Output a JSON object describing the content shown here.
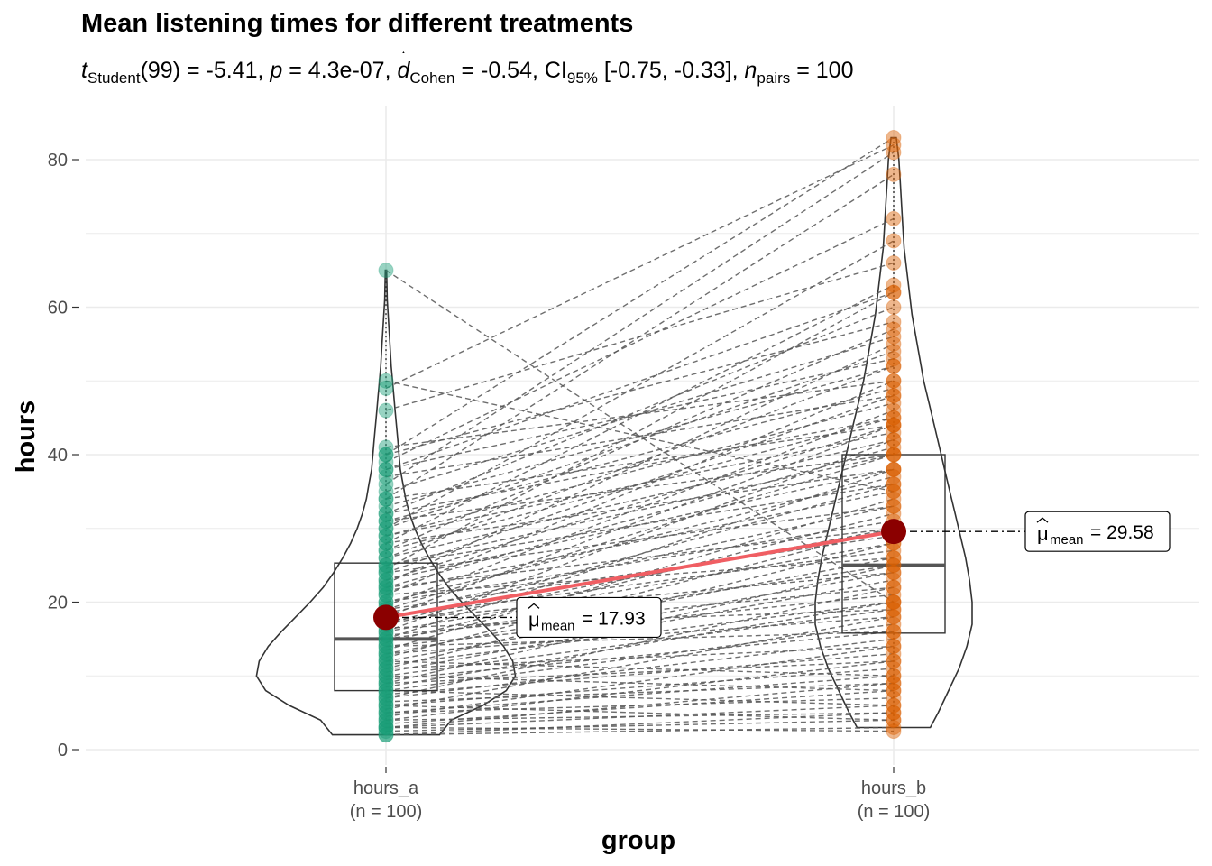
{
  "title": "Mean listening times for different treatments",
  "subtitle": {
    "t_sym": "t",
    "t_sub": "Student",
    "t_val": "(99) = -5.41, ",
    "p_sym": "p",
    "p_val": " = 4.3e-07, ",
    "d_sym": "d",
    "d_sub": "Cohen",
    "d_val": " = -0.54, CI",
    "ci_sub": "95%",
    "ci_val": " [-0.75, -0.33], ",
    "n_sym": "n",
    "n_sub": "pairs",
    "n_val": " = 100"
  },
  "colors": {
    "group_a": "#1b9e77",
    "group_b": "#d95f02",
    "mean_point": "#8b0000",
    "mean_line": "#f05e63",
    "grid": "#ebebeb",
    "paired_lines": "#555555"
  },
  "chart_data": {
    "type": "violin-box-paired",
    "title": "Mean listening times for different treatments",
    "xlabel": "group",
    "ylabel": "hours",
    "ylim": [
      0,
      85
    ],
    "yticks": [
      0,
      20,
      40,
      60,
      80
    ],
    "grid": true,
    "categories": [
      "hours_a\n(n = 100)",
      "hours_b\n(n = 100)"
    ],
    "category_lines": [
      [
        "hours_a",
        "(n = 100)"
      ],
      [
        "hours_b",
        "(n = 100)"
      ]
    ],
    "groups": [
      {
        "name": "hours_a",
        "box": {
          "q1": 8,
          "median": 15,
          "q3": 25.3,
          "whisker_low": 2,
          "whisker_high": 65
        },
        "mean": 17.93,
        "mean_label": "= 17.93"
      },
      {
        "name": "hours_b",
        "box": {
          "q1": 15.8,
          "median": 25,
          "q3": 40,
          "whisker_low": 3,
          "whisker_high": 83
        },
        "mean": 29.58,
        "mean_label": "= 29.58"
      }
    ],
    "mean_label_mu": "μ",
    "mean_label_sub": "mean",
    "paired_values": [
      [
        2,
        3
      ],
      [
        2,
        5
      ],
      [
        2.5,
        4
      ],
      [
        3,
        6
      ],
      [
        3,
        9
      ],
      [
        3,
        2.5
      ],
      [
        3.5,
        8
      ],
      [
        4,
        12
      ],
      [
        4,
        5
      ],
      [
        4.5,
        14
      ],
      [
        5,
        7
      ],
      [
        5,
        10
      ],
      [
        5.5,
        18
      ],
      [
        6,
        4
      ],
      [
        6,
        11
      ],
      [
        6.5,
        9
      ],
      [
        7,
        15
      ],
      [
        7,
        22
      ],
      [
        7.5,
        13
      ],
      [
        8,
        17
      ],
      [
        8,
        6
      ],
      [
        8.5,
        20
      ],
      [
        9,
        12
      ],
      [
        9,
        25
      ],
      [
        9.5,
        16
      ],
      [
        10,
        19
      ],
      [
        10,
        8
      ],
      [
        10.5,
        23
      ],
      [
        11,
        14
      ],
      [
        11,
        28
      ],
      [
        11.5,
        20
      ],
      [
        12,
        24
      ],
      [
        12,
        10
      ],
      [
        12.5,
        30
      ],
      [
        13,
        18
      ],
      [
        13,
        26
      ],
      [
        13.5,
        34
      ],
      [
        14,
        21
      ],
      [
        14,
        16
      ],
      [
        14.5,
        32
      ],
      [
        15,
        25
      ],
      [
        15,
        38
      ],
      [
        15.5,
        22
      ],
      [
        16,
        28
      ],
      [
        16,
        42
      ],
      [
        16.5,
        19
      ],
      [
        17,
        30
      ],
      [
        17,
        36
      ],
      [
        17.5,
        24
      ],
      [
        18,
        44
      ],
      [
        18,
        27
      ],
      [
        18.5,
        33
      ],
      [
        19,
        40
      ],
      [
        19,
        29
      ],
      [
        19.5,
        46
      ],
      [
        20,
        31
      ],
      [
        20,
        37
      ],
      [
        21,
        26
      ],
      [
        21,
        50
      ],
      [
        21.5,
        35
      ],
      [
        22,
        41
      ],
      [
        22,
        30
      ],
      [
        22.5,
        55
      ],
      [
        23,
        38
      ],
      [
        23,
        44
      ],
      [
        24,
        33
      ],
      [
        24,
        48
      ],
      [
        24.5,
        62
      ],
      [
        25,
        40
      ],
      [
        25,
        36
      ],
      [
        26,
        52
      ],
      [
        26,
        42
      ],
      [
        27,
        45
      ],
      [
        27,
        57
      ],
      [
        28,
        38
      ],
      [
        28,
        63
      ],
      [
        29,
        47
      ],
      [
        29,
        43
      ],
      [
        30,
        54
      ],
      [
        30,
        69
      ],
      [
        31,
        40
      ],
      [
        31,
        49
      ],
      [
        32,
        60
      ],
      [
        32,
        45
      ],
      [
        33,
        52
      ],
      [
        34,
        78
      ],
      [
        34,
        44
      ],
      [
        35,
        56
      ],
      [
        36,
        81
      ],
      [
        37,
        48
      ],
      [
        38,
        62
      ],
      [
        38,
        53
      ],
      [
        39,
        72
      ],
      [
        40,
        58
      ],
      [
        40,
        83
      ],
      [
        41,
        50
      ],
      [
        46,
        66
      ],
      [
        49,
        82
      ],
      [
        50,
        35
      ],
      [
        65,
        20
      ]
    ],
    "violins": [
      {
        "name": "hours_a",
        "y": [
          2,
          4,
          6,
          8,
          10,
          12,
          14,
          16,
          18,
          20,
          22,
          24,
          26,
          28,
          30,
          32,
          34,
          36,
          38,
          40,
          42,
          44,
          46,
          48,
          50,
          52,
          55,
          58,
          61,
          65
        ],
        "half_width_frac": [
          0.41,
          0.5,
          0.74,
          0.92,
          0.99,
          0.97,
          0.9,
          0.8,
          0.69,
          0.58,
          0.48,
          0.4,
          0.33,
          0.27,
          0.22,
          0.18,
          0.15,
          0.13,
          0.11,
          0.1,
          0.09,
          0.08,
          0.07,
          0.06,
          0.05,
          0.04,
          0.03,
          0.02,
          0.01,
          0.005
        ]
      },
      {
        "name": "hours_b",
        "y": [
          3,
          5,
          8,
          11,
          14,
          17,
          20,
          23,
          26,
          29,
          32,
          35,
          38,
          41,
          44,
          47,
          50,
          53,
          56,
          59,
          62,
          65,
          68,
          71,
          74,
          77,
          80,
          83
        ],
        "half_width_frac": [
          0.28,
          0.34,
          0.42,
          0.5,
          0.56,
          0.6,
          0.6,
          0.58,
          0.55,
          0.51,
          0.47,
          0.43,
          0.39,
          0.35,
          0.31,
          0.27,
          0.23,
          0.2,
          0.17,
          0.14,
          0.12,
          0.1,
          0.08,
          0.07,
          0.06,
          0.05,
          0.04,
          0.02
        ]
      }
    ]
  }
}
